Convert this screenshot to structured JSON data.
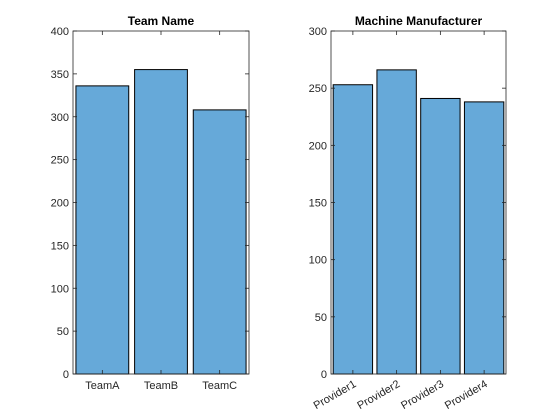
{
  "chart_data": [
    {
      "type": "bar",
      "title": "Team Name",
      "xlabel": "",
      "ylabel": "",
      "categories": [
        "TeamA",
        "TeamB",
        "TeamC"
      ],
      "values": [
        336,
        355,
        308
      ],
      "ylim": [
        0,
        400
      ],
      "yticks": [
        0,
        50,
        100,
        150,
        200,
        250,
        300,
        350,
        400
      ],
      "grid": false,
      "legend": "none",
      "bar_color": "#66a9d9",
      "edge_color": "#000000",
      "tick_rotation": 0
    },
    {
      "type": "bar",
      "title": "Machine Manufacturer",
      "xlabel": "",
      "ylabel": "",
      "categories": [
        "Provider1",
        "Provider2",
        "Provider3",
        "Provider4"
      ],
      "values": [
        253,
        266,
        241,
        238
      ],
      "ylim": [
        0,
        300
      ],
      "yticks": [
        0,
        50,
        100,
        150,
        200,
        250,
        300
      ],
      "grid": false,
      "legend": "none",
      "bar_color": "#66a9d9",
      "edge_color": "#000000",
      "tick_rotation": -30
    }
  ]
}
